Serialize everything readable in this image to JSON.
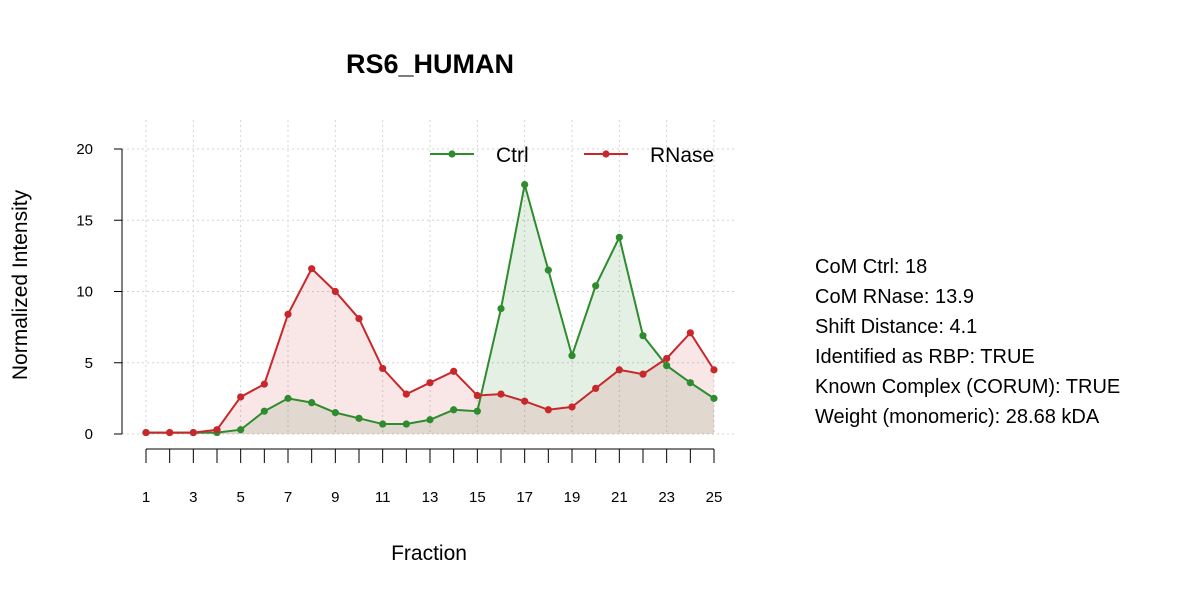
{
  "chart_data": {
    "type": "line",
    "title": "RS6_HUMAN",
    "xlabel": "Fraction",
    "ylabel": "Normalized Intensity",
    "xlim": [
      1,
      25
    ],
    "ylim": [
      0,
      20
    ],
    "yticks": [
      0,
      5,
      10,
      15,
      20
    ],
    "xtick_labels": [
      1,
      3,
      5,
      7,
      9,
      11,
      13,
      15,
      17,
      19,
      21,
      23,
      25
    ],
    "x": [
      1,
      2,
      3,
      4,
      5,
      6,
      7,
      8,
      9,
      10,
      11,
      12,
      13,
      14,
      15,
      16,
      17,
      18,
      19,
      20,
      21,
      22,
      23,
      24,
      25
    ],
    "grid": true,
    "legend_position": "top",
    "series": [
      {
        "name": "Ctrl",
        "color": "#2e8b2e",
        "fill": "rgba(46,139,46,0.13)",
        "values": [
          0.1,
          0.1,
          0.1,
          0.1,
          0.3,
          1.6,
          2.5,
          2.2,
          1.5,
          1.1,
          0.7,
          0.7,
          1.0,
          1.7,
          1.6,
          8.8,
          17.5,
          11.5,
          5.5,
          10.4,
          13.8,
          6.9,
          4.8,
          3.6,
          2.5
        ]
      },
      {
        "name": "RNase",
        "color": "#c8282b",
        "fill": "rgba(200,40,43,0.11)",
        "values": [
          0.1,
          0.1,
          0.1,
          0.3,
          2.6,
          3.5,
          8.4,
          11.6,
          10.0,
          8.1,
          4.6,
          2.8,
          3.6,
          4.4,
          2.7,
          2.8,
          2.3,
          1.7,
          1.9,
          3.2,
          4.5,
          4.2,
          5.3,
          7.1,
          4.5
        ]
      }
    ]
  },
  "info": [
    "CoM Ctrl: 18",
    "CoM RNase: 13.9",
    "Shift Distance: 4.1",
    "Identified as RBP: TRUE",
    "Known Complex (CORUM): TRUE",
    "Weight (monomeric): 28.68 kDA"
  ]
}
